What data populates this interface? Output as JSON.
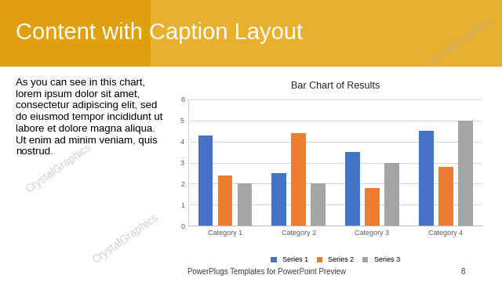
{
  "slide": {
    "title": "Content with Caption Layout",
    "caption": "As you can see in this chart, lorem ipsum dolor sit amet, consectetur adipiscing elit, sed do eiusmod tempor incididunt ut labore et dolore magna aliqua. Ut enim ad minim veniam, quis nostrud.",
    "footer": "PowerPlugs Templates for PowerPoint Preview",
    "page": 8,
    "watermark": "CrystalGraphics"
  },
  "chart_data": {
    "type": "bar",
    "title": "Bar Chart of Results",
    "categories": [
      "Category 1",
      "Category 2",
      "Category 3",
      "Category 4"
    ],
    "series": [
      {
        "name": "Series 1",
        "color": "#4472c4",
        "values": [
          4.3,
          2.5,
          3.5,
          4.5
        ]
      },
      {
        "name": "Series 2",
        "color": "#ed7d31",
        "values": [
          2.4,
          4.4,
          1.8,
          2.8
        ]
      },
      {
        "name": "Series 3",
        "color": "#a5a5a5",
        "values": [
          2,
          2,
          3,
          5
        ]
      }
    ],
    "ylim": [
      0,
      6
    ],
    "yticks": [
      0,
      1,
      2,
      3,
      4,
      5,
      6
    ],
    "grid": true,
    "legend": "lower center"
  }
}
